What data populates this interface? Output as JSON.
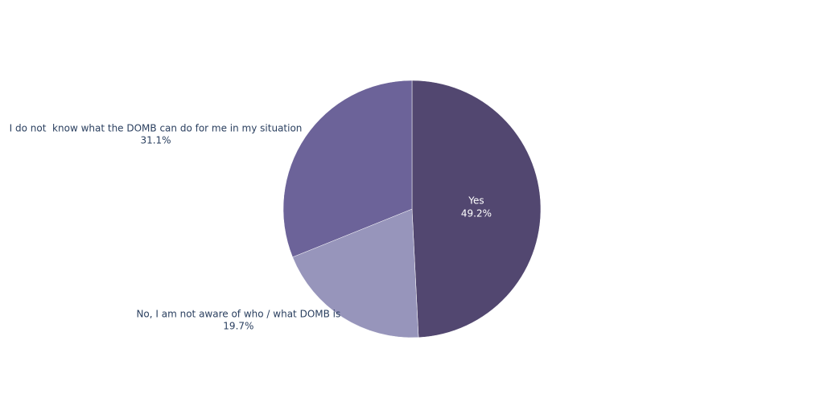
{
  "chart_data": {
    "type": "pie",
    "categories": [
      "Yes",
      "No, I am not aware of who / what DOMB is",
      "I do not  know what the DOMB can do for me in my situation"
    ],
    "values": [
      49.2,
      19.7,
      31.1
    ],
    "value_labels": [
      "49.2%",
      "19.7%",
      "31.1%"
    ],
    "colors": [
      "#524770",
      "#9795bb",
      "#6c6399"
    ]
  }
}
